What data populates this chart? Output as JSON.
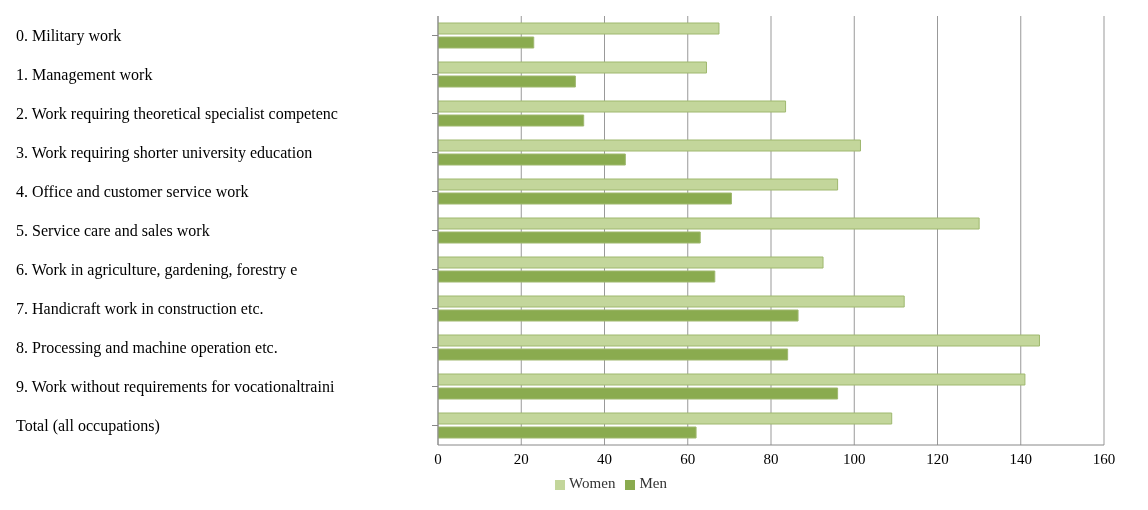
{
  "chart_data": {
    "type": "bar",
    "orientation": "horizontal",
    "categories": [
      "0. Military work",
      "1. Management work",
      "2. Work requiring theoretical specialist competenc",
      "3. Work requiring shorter university education",
      "4. Office and customer service work",
      "5. Service care and sales work",
      "6. Work in agriculture, gardening, forestry e",
      "7. Handicraft work in construction etc.",
      "8. Processing and machine operation etc.",
      "9. Work without requirements for vocationaltraini",
      "Total (all occupations)"
    ],
    "series": [
      {
        "name": "Women",
        "color": "#c3d69b",
        "values": [
          67.5,
          64.5,
          83.5,
          101.5,
          96,
          130,
          92.5,
          112,
          144.5,
          141,
          109
        ]
      },
      {
        "name": "Men",
        "color": "#8aab4f",
        "values": [
          23,
          33,
          35,
          45,
          70.5,
          63,
          66.5,
          86.5,
          84,
          96,
          62
        ]
      }
    ],
    "xlim": [
      0,
      160
    ],
    "xticks": [
      0,
      20,
      40,
      60,
      80,
      100,
      120,
      140,
      160
    ],
    "grid": "x",
    "legend": "bottom"
  }
}
